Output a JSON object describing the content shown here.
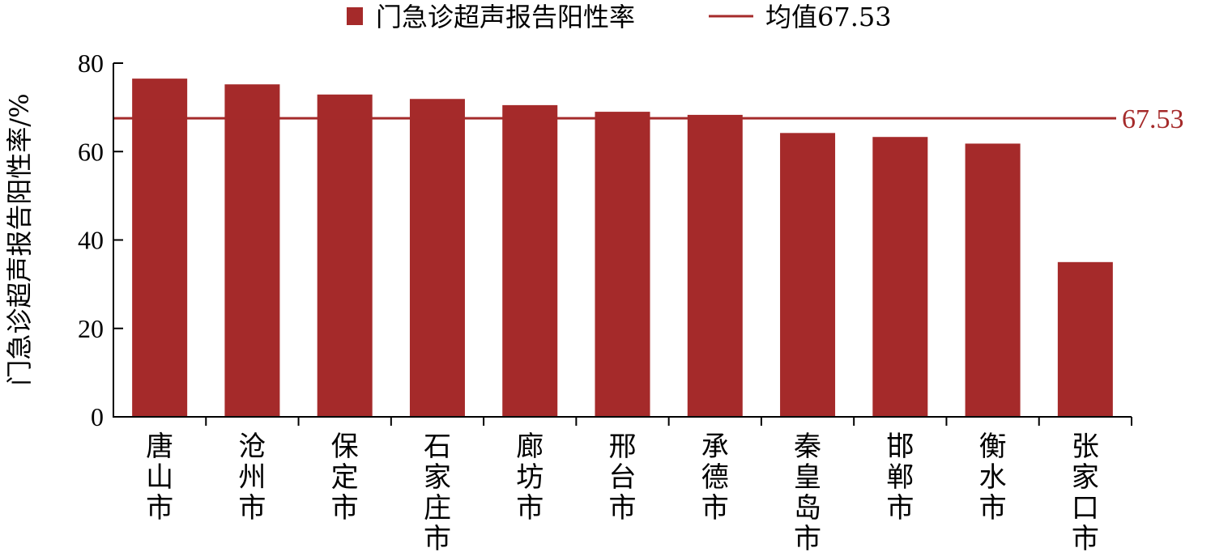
{
  "chart_data": {
    "type": "bar",
    "categories": [
      "唐山市",
      "沧州市",
      "保定市",
      "石家庄市",
      "廊坊市",
      "邢台市",
      "承德市",
      "秦皇岛市",
      "邯郸市",
      "衡水市",
      "张家口市"
    ],
    "series": [
      {
        "name": "门急诊超声报告阳性率",
        "values": [
          76.5,
          75.2,
          72.9,
          71.9,
          70.5,
          69.0,
          68.3,
          64.2,
          63.3,
          61.8,
          35.0
        ],
        "color": "#a52a2a"
      }
    ],
    "reference_line": {
      "name": "均值67.53",
      "value": 67.53,
      "label": "67.53",
      "color": "#a52a2a"
    },
    "title": "",
    "xlabel": "",
    "ylabel": "门急诊超声报告阳性率/%",
    "ylim": [
      0,
      80
    ],
    "yticks": [
      0,
      20,
      40,
      60,
      80
    ],
    "grid": false,
    "legend_position": "top-center"
  }
}
